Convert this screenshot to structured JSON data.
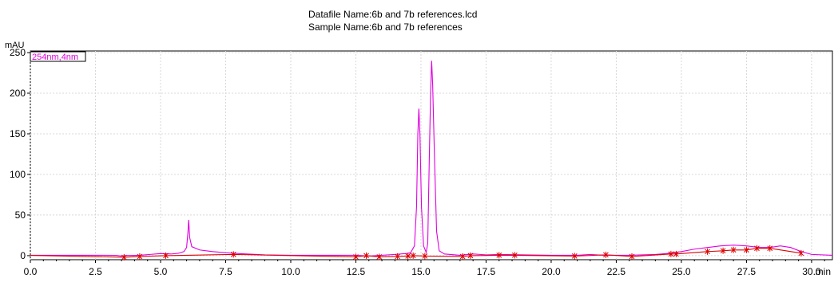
{
  "header": {
    "datafile": "Datafile Name:6b and 7b references.lcd",
    "sample": "Sample Name:6b and 7b references"
  },
  "chart_data": {
    "type": "line",
    "title": "",
    "ylabel": "mAU",
    "xlabel": "min",
    "xlim": [
      0,
      30.8
    ],
    "ylim": [
      -5,
      252
    ],
    "grid": true,
    "x_ticks": [
      0,
      2.5,
      5,
      7.5,
      10,
      12.5,
      15,
      17.5,
      20,
      22.5,
      25,
      27.5,
      30
    ],
    "x_tick_labels": [
      "0.0",
      "2.5",
      "5.0",
      "7.5",
      "10.0",
      "12.5",
      "15.0",
      "17.5",
      "20.0",
      "22.5",
      "25.0",
      "27.5",
      "30.0"
    ],
    "x_unit_suffix": "min",
    "y_ticks": [
      0,
      50,
      100,
      150,
      200,
      250
    ],
    "y_tick_labels": [
      "0",
      "50",
      "100",
      "150",
      "200",
      "250"
    ],
    "legend": "top-left",
    "series": [
      {
        "name": "254nm,4nm",
        "color": "#e000e0",
        "points": [
          [
            0,
            0.5
          ],
          [
            2.5,
            0.5
          ],
          [
            3.3,
            0.3
          ],
          [
            3.5,
            -0.5
          ],
          [
            3.7,
            0.2
          ],
          [
            4.2,
            0.5
          ],
          [
            4.6,
            1.5
          ],
          [
            5.0,
            2.5
          ],
          [
            5.4,
            2.0
          ],
          [
            5.7,
            3.0
          ],
          [
            5.9,
            5.0
          ],
          [
            6.0,
            10
          ],
          [
            6.05,
            28
          ],
          [
            6.08,
            44
          ],
          [
            6.12,
            22
          ],
          [
            6.2,
            11
          ],
          [
            6.5,
            7
          ],
          [
            7.0,
            5
          ],
          [
            7.5,
            3.5
          ],
          [
            8.0,
            2.5
          ],
          [
            9.0,
            1
          ],
          [
            10,
            0.5
          ],
          [
            12.5,
            0.5
          ],
          [
            13.0,
            -0.5
          ],
          [
            13.5,
            0.5
          ],
          [
            14.0,
            1.5
          ],
          [
            14.4,
            2.5
          ],
          [
            14.6,
            3.5
          ],
          [
            14.75,
            12
          ],
          [
            14.83,
            60
          ],
          [
            14.88,
            150
          ],
          [
            14.92,
            181
          ],
          [
            14.96,
            150
          ],
          [
            15.02,
            60
          ],
          [
            15.1,
            12
          ],
          [
            15.2,
            4
          ],
          [
            15.26,
            15
          ],
          [
            15.32,
            120
          ],
          [
            15.37,
            200
          ],
          [
            15.41,
            240
          ],
          [
            15.45,
            210
          ],
          [
            15.52,
            120
          ],
          [
            15.6,
            30
          ],
          [
            15.7,
            6
          ],
          [
            15.9,
            2
          ],
          [
            16.5,
            0.5
          ],
          [
            17.0,
            2
          ],
          [
            17.5,
            1
          ],
          [
            18.0,
            1.5
          ],
          [
            19.0,
            1
          ],
          [
            20.0,
            0.5
          ],
          [
            21.0,
            0.5
          ],
          [
            21.5,
            1.5
          ],
          [
            22.0,
            0.5
          ],
          [
            23.0,
            0.5
          ],
          [
            24.0,
            1.5
          ],
          [
            24.6,
            3
          ],
          [
            25.0,
            5
          ],
          [
            25.5,
            8
          ],
          [
            26.0,
            10
          ],
          [
            26.5,
            12
          ],
          [
            27.0,
            13
          ],
          [
            27.5,
            12
          ],
          [
            28.0,
            10
          ],
          [
            28.4,
            10
          ],
          [
            28.8,
            12
          ],
          [
            29.2,
            10
          ],
          [
            29.6,
            5
          ],
          [
            30.0,
            1.5
          ],
          [
            30.8,
            0.5
          ]
        ]
      },
      {
        "name": "",
        "color": "#dd0000",
        "points": [
          [
            0,
            0.3
          ],
          [
            3.6,
            -2
          ],
          [
            4.2,
            -1
          ],
          [
            5.2,
            0
          ],
          [
            7.8,
            1.5
          ],
          [
            12.5,
            -1.5
          ],
          [
            12.9,
            0
          ],
          [
            13.4,
            -1.5
          ],
          [
            14.1,
            -1
          ],
          [
            14.5,
            -0.5
          ],
          [
            14.7,
            0
          ],
          [
            15.15,
            -0.5
          ],
          [
            16.6,
            -1
          ],
          [
            16.9,
            0
          ],
          [
            18.0,
            0.5
          ],
          [
            18.6,
            0.5
          ],
          [
            20.9,
            -0.5
          ],
          [
            22.1,
            1
          ],
          [
            23.1,
            -1
          ],
          [
            24.6,
            2
          ],
          [
            24.8,
            2
          ],
          [
            26.0,
            5
          ],
          [
            26.6,
            6
          ],
          [
            27.0,
            7
          ],
          [
            27.5,
            7
          ],
          [
            27.9,
            9
          ],
          [
            28.4,
            9
          ],
          [
            29.6,
            3
          ]
        ]
      }
    ],
    "markers": [
      [
        3.6,
        -2
      ],
      [
        4.2,
        -1
      ],
      [
        5.2,
        0
      ],
      [
        7.8,
        1.5
      ],
      [
        12.5,
        -1.5
      ],
      [
        12.9,
        0
      ],
      [
        13.4,
        -1.5
      ],
      [
        14.1,
        -1
      ],
      [
        14.5,
        -0.5
      ],
      [
        14.7,
        0
      ],
      [
        15.15,
        -0.5
      ],
      [
        16.6,
        -1
      ],
      [
        16.9,
        0
      ],
      [
        18.0,
        0.5
      ],
      [
        18.6,
        0.5
      ],
      [
        20.9,
        -0.5
      ],
      [
        22.1,
        1
      ],
      [
        23.1,
        -1
      ],
      [
        24.6,
        2
      ],
      [
        24.8,
        2
      ],
      [
        26.0,
        5
      ],
      [
        26.6,
        6
      ],
      [
        27.0,
        7
      ],
      [
        27.5,
        7
      ],
      [
        27.9,
        9
      ],
      [
        28.4,
        9
      ],
      [
        29.6,
        3
      ]
    ]
  }
}
